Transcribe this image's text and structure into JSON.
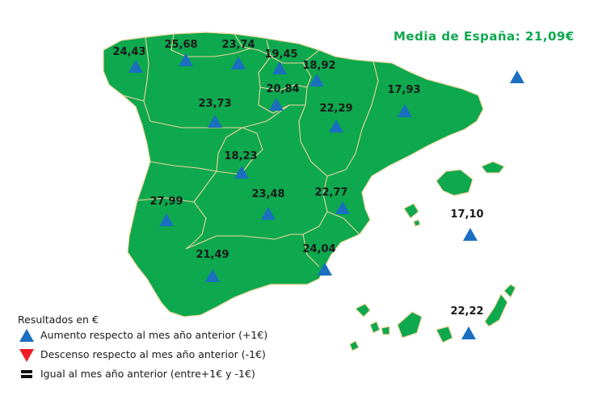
{
  "title": "Media de España: 21,09€",
  "colors": {
    "land": "#0ea84e",
    "border": "#f0d6a0",
    "increase": "#1a6fc0",
    "decrease": "#ee1c25",
    "equal": "#111111"
  },
  "regions": [
    {
      "name": "Galicia",
      "value": "24,43",
      "trend": "up"
    },
    {
      "name": "Asturias",
      "value": "25,68",
      "trend": "up"
    },
    {
      "name": "Cantabria",
      "value": "23,74",
      "trend": "up"
    },
    {
      "name": "País Vasco",
      "value": "19,45",
      "trend": "up"
    },
    {
      "name": "Navarra",
      "value": "18,92",
      "trend": "up"
    },
    {
      "name": "La Rioja",
      "value": "20,84",
      "trend": "up"
    },
    {
      "name": "Castilla y León",
      "value": "23,73",
      "trend": "up"
    },
    {
      "name": "Cataluña",
      "value": "17,93",
      "trend": "up"
    },
    {
      "name": "Aragón",
      "value": "22,29",
      "trend": "up"
    },
    {
      "name": "Madrid",
      "value": "18,23",
      "trend": "up"
    },
    {
      "name": "Extremadura",
      "value": "27,99",
      "trend": "up"
    },
    {
      "name": "Castilla-La Mancha",
      "value": "23,48",
      "trend": "up"
    },
    {
      "name": "Comunidad Valenciana",
      "value": "22,77",
      "trend": "up"
    },
    {
      "name": "Murcia",
      "value": "24,04",
      "trend": "up"
    },
    {
      "name": "Andalucía",
      "value": "21,49",
      "trend": "up"
    },
    {
      "name": "Baleares",
      "value": "17,10",
      "trend": "up"
    },
    {
      "name": "Canarias",
      "value": "22,22",
      "trend": "up"
    },
    {
      "name": "Francia",
      "value": "",
      "trend": "up"
    }
  ],
  "legend": {
    "title": "Resultados en €",
    "items": [
      {
        "icon": "triangle-up-icon",
        "label": "Aumento respecto al mes  año anterior (+1€)"
      },
      {
        "icon": "triangle-down-icon",
        "label": "Descenso respecto al mes año anterior (-1€)"
      },
      {
        "icon": "equal-icon",
        "label": "Igual al mes año anterior (entre+1€ y -1€)"
      }
    ]
  }
}
